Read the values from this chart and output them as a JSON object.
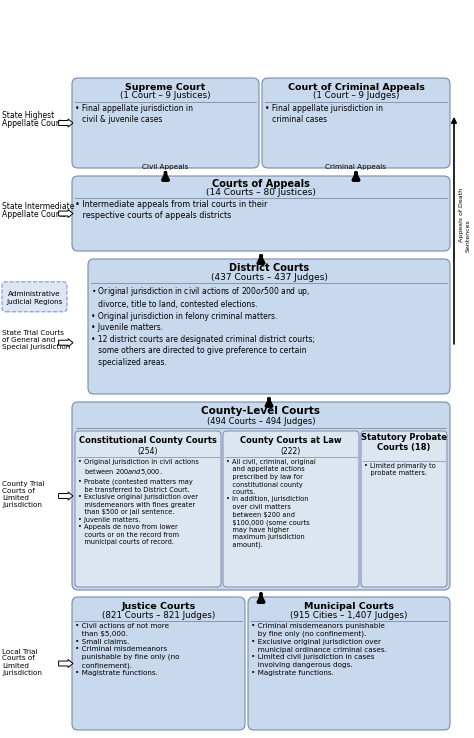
{
  "bg_color": "#ffffff",
  "box_fill": "#c9d9ed",
  "box_edge": "#7a8aaa",
  "sub_fill": "#dce6f0",
  "txt": "#000000",
  "supreme_court": {
    "title": "Supreme Court",
    "subtitle": "(1 Court – 9 Justices)",
    "body": "• Final appellate jurisdiction in\n   civil & juvenile cases"
  },
  "criminal_appeals": {
    "title": "Court of Criminal Appeals",
    "subtitle": "(1 Court – 9 Judges)",
    "body": "• Final appellate jurisdiction in\n   criminal cases"
  },
  "courts_of_appeals": {
    "title": "Courts of Appeals",
    "subtitle": "(14 Courts – 80 Justices)",
    "body": "• Intermediate appeals from trial courts in their\n   respective courts of appeals districts"
  },
  "district_courts": {
    "title": "District Courts",
    "subtitle": "(437 Courts – 437 Judges)",
    "body": "• Original jurisdiction in civil actions of $200 or $500 and up,\n   divorce, title to land, contested elections.\n• Original jurisdiction in felony criminal matters.\n• Juvenile matters.\n• 12 district courts are designated criminal district courts;\n   some others are directed to give preference to certain\n   specialized areas."
  },
  "county_level_title": "County-Level Courts",
  "county_level_sub": "(494 Courts – 494 Judges)",
  "constitutional_county": {
    "title": "Constitutional County Courts",
    "subtitle": "(254)",
    "body": "• Original jurisdiction in civil actions\n   between $200 and $5,000.\n• Probate (contested matters may\n   be transferred to District Court.\n• Exclusive original jurisdiction over\n   misdemeanors with fines greater\n   than $500 or jail sentence.\n• Juvenile matters.\n• Appeals de novo from lower\n   courts or on the record from\n   municipal courts of record."
  },
  "county_at_law": {
    "title": "County Courts at Law",
    "subtitle": "(222)",
    "body": "• All civil, criminal, original\n   and appellate actions\n   prescribed by law for\n   constitutional county\n   courts.\n• In addition, jurisdiction\n   over civil matters\n   between $200 and\n   $100,000 (some courts\n   may have higher\n   maximum jurisdiction\n   amount)."
  },
  "statutory_probate": {
    "title": "Statutory Probate\nCourts (18)",
    "body": "• Limited primarily to\n   probate matters."
  },
  "justice_courts": {
    "title": "Justice Courts",
    "subtitle": "(821 Courts – 821 Judges)",
    "body": "• Civil actions of not more\n   than $5,000.\n• Small claims.\n• Criminal misdemeanors\n   punishable by fine only (no\n   confinement).\n• Magistrate functions."
  },
  "municipal_courts": {
    "title": "Municipal Courts",
    "subtitle": "(915 Cities – 1,407 Judges)",
    "body": "• Criminal misdemeanors punishable\n   by fine only (no confinement).\n• Exclusive original jurisdiction over\n   municipal ordinance criminal cases.\n• Limited civil jurisdiction in cases\n   involving dangerous dogs.\n• Magistrate functions."
  }
}
